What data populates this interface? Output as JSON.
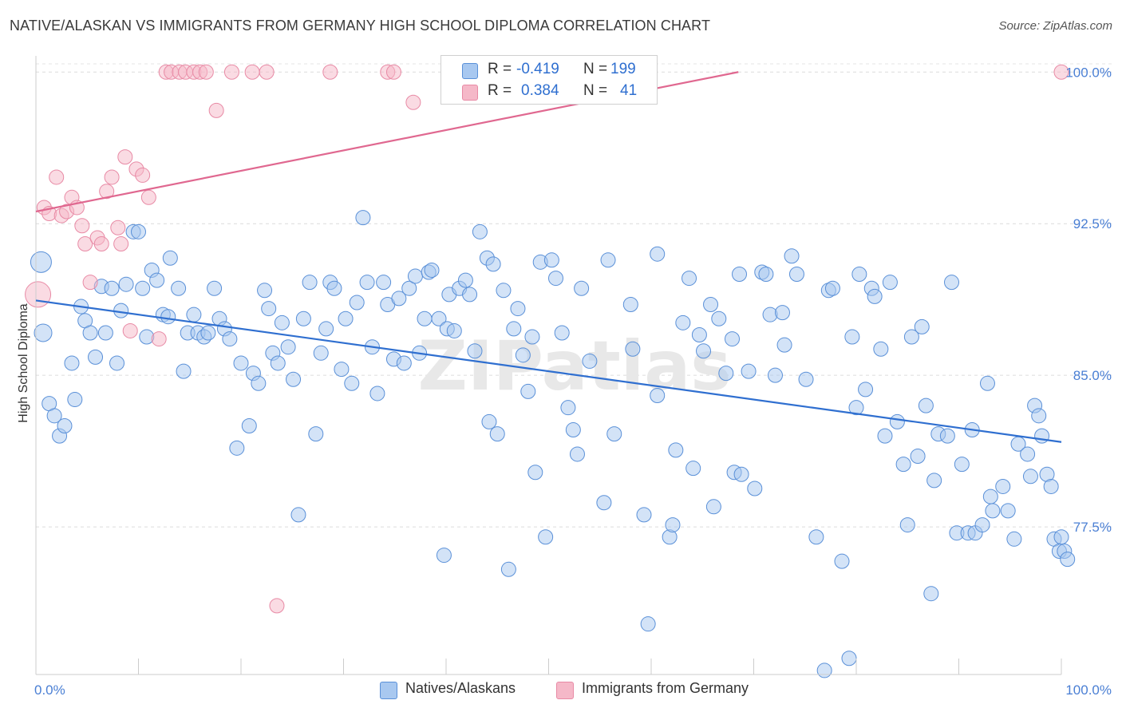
{
  "title": "NATIVE/ALASKAN VS IMMIGRANTS FROM GERMANY HIGH SCHOOL DIPLOMA CORRELATION CHART",
  "source": "Source: ZipAtlas.com",
  "watermark": "ZIPatlas",
  "legend_top": [
    {
      "r_label": "R =",
      "r_value": "-0.419",
      "n_label": "N =",
      "n_value": "199",
      "color": "#a8c8f0"
    },
    {
      "r_label": "R =",
      "r_value": "0.384",
      "n_label": "N =",
      "n_value": "41",
      "color": "#f5b8c8"
    }
  ],
  "legend_bottom": [
    {
      "label": "Natives/Alaskans",
      "color": "#a8c8f0"
    },
    {
      "label": "Immigrants from Germany",
      "color": "#f5b8c8"
    }
  ],
  "chart_data": {
    "type": "scatter",
    "title": "NATIVE/ALASKAN VS IMMIGRANTS FROM GERMANY HIGH SCHOOL DIPLOMA CORRELATION CHART",
    "xlabel": "",
    "ylabel": "High School Diploma",
    "xlim": [
      0,
      100
    ],
    "ylim": [
      70.2,
      100.8
    ],
    "x_tick_labels": [
      "0.0%",
      "100.0%"
    ],
    "y_ticks": [
      77.5,
      85.0,
      92.5,
      100.0
    ],
    "y_tick_labels": [
      "77.5%",
      "85.0%",
      "92.5%",
      "100.0%"
    ],
    "grid": "horizontal dashed",
    "series": [
      {
        "name": "Natives/Alaskans",
        "color": "#a8c8f0",
        "stroke": "#5a90d8",
        "trend": {
          "x": [
            0,
            100
          ],
          "y": [
            88.7,
            81.7
          ],
          "color": "#2f6fd0"
        },
        "points": [
          [
            0.5,
            90.6
          ],
          [
            0.7,
            87.1
          ],
          [
            1.3,
            83.6
          ],
          [
            1.8,
            83.0
          ],
          [
            2.3,
            82.0
          ],
          [
            2.8,
            82.5
          ],
          [
            3.5,
            85.6
          ],
          [
            3.8,
            83.8
          ],
          [
            4.4,
            88.4
          ],
          [
            4.8,
            87.7
          ],
          [
            5.3,
            87.1
          ],
          [
            5.8,
            85.9
          ],
          [
            6.4,
            89.4
          ],
          [
            6.8,
            87.1
          ],
          [
            7.4,
            89.3
          ],
          [
            7.9,
            85.6
          ],
          [
            8.3,
            88.2
          ],
          [
            8.8,
            89.5
          ],
          [
            9.5,
            92.1
          ],
          [
            10.0,
            92.1
          ],
          [
            10.4,
            89.3
          ],
          [
            10.8,
            86.9
          ],
          [
            11.3,
            90.2
          ],
          [
            11.8,
            89.7
          ],
          [
            12.4,
            88.0
          ],
          [
            12.9,
            87.9
          ],
          [
            13.1,
            90.8
          ],
          [
            13.9,
            89.3
          ],
          [
            14.4,
            85.2
          ],
          [
            14.8,
            87.1
          ],
          [
            15.4,
            88.0
          ],
          [
            15.8,
            87.1
          ],
          [
            16.4,
            86.9
          ],
          [
            16.8,
            87.1
          ],
          [
            17.4,
            89.3
          ],
          [
            17.9,
            87.8
          ],
          [
            18.4,
            87.3
          ],
          [
            18.9,
            86.8
          ],
          [
            19.6,
            81.4
          ],
          [
            20.0,
            85.6
          ],
          [
            20.8,
            82.5
          ],
          [
            21.2,
            85.1
          ],
          [
            21.7,
            84.6
          ],
          [
            22.3,
            89.2
          ],
          [
            22.7,
            88.3
          ],
          [
            23.1,
            86.1
          ],
          [
            23.6,
            85.6
          ],
          [
            24.0,
            87.6
          ],
          [
            24.6,
            86.4
          ],
          [
            25.1,
            84.8
          ],
          [
            25.6,
            78.1
          ],
          [
            26.1,
            87.8
          ],
          [
            26.7,
            89.6
          ],
          [
            27.3,
            82.1
          ],
          [
            27.8,
            86.1
          ],
          [
            28.3,
            87.3
          ],
          [
            28.7,
            89.6
          ],
          [
            29.1,
            89.3
          ],
          [
            29.8,
            85.3
          ],
          [
            30.2,
            87.8
          ],
          [
            30.8,
            84.6
          ],
          [
            31.3,
            88.6
          ],
          [
            31.9,
            92.8
          ],
          [
            32.3,
            89.6
          ],
          [
            32.8,
            86.4
          ],
          [
            33.3,
            84.1
          ],
          [
            33.9,
            89.6
          ],
          [
            34.3,
            88.5
          ],
          [
            34.9,
            85.8
          ],
          [
            35.4,
            88.8
          ],
          [
            35.9,
            85.6
          ],
          [
            36.4,
            89.3
          ],
          [
            37.0,
            89.9
          ],
          [
            37.4,
            86.1
          ],
          [
            37.9,
            87.8
          ],
          [
            38.3,
            90.1
          ],
          [
            38.6,
            90.2
          ],
          [
            39.3,
            87.8
          ],
          [
            39.8,
            76.1
          ],
          [
            40.1,
            87.3
          ],
          [
            40.3,
            89.0
          ],
          [
            40.8,
            87.2
          ],
          [
            41.3,
            89.3
          ],
          [
            41.9,
            89.7
          ],
          [
            42.3,
            89.0
          ],
          [
            42.8,
            86.2
          ],
          [
            43.3,
            92.1
          ],
          [
            44.0,
            90.8
          ],
          [
            44.2,
            82.7
          ],
          [
            44.6,
            90.5
          ],
          [
            45.0,
            82.1
          ],
          [
            45.6,
            89.2
          ],
          [
            46.1,
            75.4
          ],
          [
            46.6,
            87.3
          ],
          [
            47.0,
            88.3
          ],
          [
            47.5,
            86.0
          ],
          [
            48.0,
            84.2
          ],
          [
            48.4,
            86.9
          ],
          [
            48.7,
            80.2
          ],
          [
            49.2,
            90.6
          ],
          [
            49.7,
            77.0
          ],
          [
            50.3,
            90.7
          ],
          [
            50.7,
            89.8
          ],
          [
            51.3,
            87.1
          ],
          [
            51.9,
            83.4
          ],
          [
            52.4,
            82.3
          ],
          [
            52.8,
            81.1
          ],
          [
            53.2,
            89.3
          ],
          [
            54.0,
            85.7
          ],
          [
            55.4,
            78.7
          ],
          [
            55.8,
            90.7
          ],
          [
            56.4,
            82.1
          ],
          [
            58.0,
            88.5
          ],
          [
            58.2,
            86.3
          ],
          [
            59.3,
            78.1
          ],
          [
            59.7,
            72.7
          ],
          [
            60.6,
            91.0
          ],
          [
            60.6,
            84.0
          ],
          [
            61.8,
            77.0
          ],
          [
            62.1,
            77.6
          ],
          [
            62.4,
            81.3
          ],
          [
            63.1,
            87.6
          ],
          [
            63.7,
            89.8
          ],
          [
            64.1,
            80.4
          ],
          [
            64.7,
            87.0
          ],
          [
            65.1,
            86.2
          ],
          [
            65.8,
            88.5
          ],
          [
            66.1,
            78.5
          ],
          [
            66.6,
            87.8
          ],
          [
            67.3,
            85.1
          ],
          [
            67.9,
            86.8
          ],
          [
            68.1,
            80.2
          ],
          [
            68.6,
            90.0
          ],
          [
            68.8,
            80.1
          ],
          [
            69.5,
            85.2
          ],
          [
            70.1,
            79.4
          ],
          [
            70.8,
            90.1
          ],
          [
            71.2,
            90.0
          ],
          [
            71.6,
            88.0
          ],
          [
            72.1,
            85.0
          ],
          [
            72.8,
            88.1
          ],
          [
            73.0,
            86.5
          ],
          [
            73.7,
            90.9
          ],
          [
            74.2,
            90.0
          ],
          [
            75.1,
            84.8
          ],
          [
            76.1,
            77.0
          ],
          [
            76.9,
            70.4
          ],
          [
            77.3,
            89.2
          ],
          [
            77.7,
            89.3
          ],
          [
            78.6,
            75.8
          ],
          [
            79.3,
            71.0
          ],
          [
            79.6,
            86.9
          ],
          [
            80.0,
            83.4
          ],
          [
            80.3,
            90.0
          ],
          [
            80.9,
            84.3
          ],
          [
            81.5,
            89.3
          ],
          [
            81.8,
            88.9
          ],
          [
            82.4,
            86.3
          ],
          [
            82.8,
            82.0
          ],
          [
            83.3,
            89.6
          ],
          [
            84.0,
            82.7
          ],
          [
            84.6,
            80.6
          ],
          [
            85.0,
            77.6
          ],
          [
            85.4,
            86.9
          ],
          [
            86.0,
            81.0
          ],
          [
            86.4,
            87.4
          ],
          [
            86.8,
            83.5
          ],
          [
            87.3,
            74.2
          ],
          [
            87.6,
            79.8
          ],
          [
            88.0,
            82.1
          ],
          [
            88.9,
            82.0
          ],
          [
            89.3,
            89.6
          ],
          [
            89.8,
            77.2
          ],
          [
            90.3,
            80.6
          ],
          [
            90.9,
            77.2
          ],
          [
            91.3,
            82.3
          ],
          [
            91.6,
            77.2
          ],
          [
            92.3,
            77.6
          ],
          [
            92.8,
            84.6
          ],
          [
            93.1,
            79.0
          ],
          [
            93.3,
            78.3
          ],
          [
            94.3,
            79.5
          ],
          [
            94.8,
            78.3
          ],
          [
            95.4,
            76.9
          ],
          [
            95.8,
            81.6
          ],
          [
            96.7,
            81.1
          ],
          [
            97.0,
            80.0
          ],
          [
            97.4,
            83.5
          ],
          [
            97.8,
            83.0
          ],
          [
            98.1,
            82.0
          ],
          [
            98.6,
            80.1
          ],
          [
            99.0,
            79.5
          ],
          [
            99.3,
            76.9
          ],
          [
            99.8,
            76.3
          ],
          [
            100.0,
            77.0
          ],
          [
            100.3,
            76.3
          ],
          [
            100.6,
            75.9
          ]
        ]
      },
      {
        "name": "Immigrants from Germany",
        "color": "#f5b8c8",
        "stroke": "#e88aa5",
        "trend": {
          "x": [
            0,
            68.5
          ],
          "y": [
            93.1,
            100.0
          ],
          "color": "#e06890"
        },
        "points": [
          [
            0.2,
            89.0
          ],
          [
            0.8,
            93.3
          ],
          [
            1.3,
            93.0
          ],
          [
            2.0,
            94.8
          ],
          [
            2.5,
            92.9
          ],
          [
            3.0,
            93.1
          ],
          [
            3.5,
            93.8
          ],
          [
            4.0,
            93.3
          ],
          [
            4.5,
            92.4
          ],
          [
            4.8,
            91.5
          ],
          [
            5.3,
            89.6
          ],
          [
            6.0,
            91.8
          ],
          [
            6.4,
            91.5
          ],
          [
            6.9,
            94.1
          ],
          [
            7.4,
            94.8
          ],
          [
            8.0,
            92.3
          ],
          [
            8.3,
            91.5
          ],
          [
            8.7,
            95.8
          ],
          [
            9.2,
            87.2
          ],
          [
            9.8,
            95.2
          ],
          [
            10.4,
            94.9
          ],
          [
            11.0,
            93.8
          ],
          [
            12.0,
            86.8
          ],
          [
            12.7,
            100.0
          ],
          [
            13.2,
            100.0
          ],
          [
            14.0,
            100.0
          ],
          [
            14.6,
            100.0
          ],
          [
            15.4,
            100.0
          ],
          [
            16.0,
            100.0
          ],
          [
            16.6,
            100.0
          ],
          [
            17.6,
            98.1
          ],
          [
            19.1,
            100.0
          ],
          [
            21.1,
            100.0
          ],
          [
            22.5,
            100.0
          ],
          [
            23.5,
            73.6
          ],
          [
            28.7,
            100.0
          ],
          [
            34.3,
            100.0
          ],
          [
            34.9,
            100.0
          ],
          [
            36.8,
            98.5
          ],
          [
            54.1,
            100.0
          ],
          [
            100.0,
            100.0
          ]
        ]
      }
    ]
  }
}
